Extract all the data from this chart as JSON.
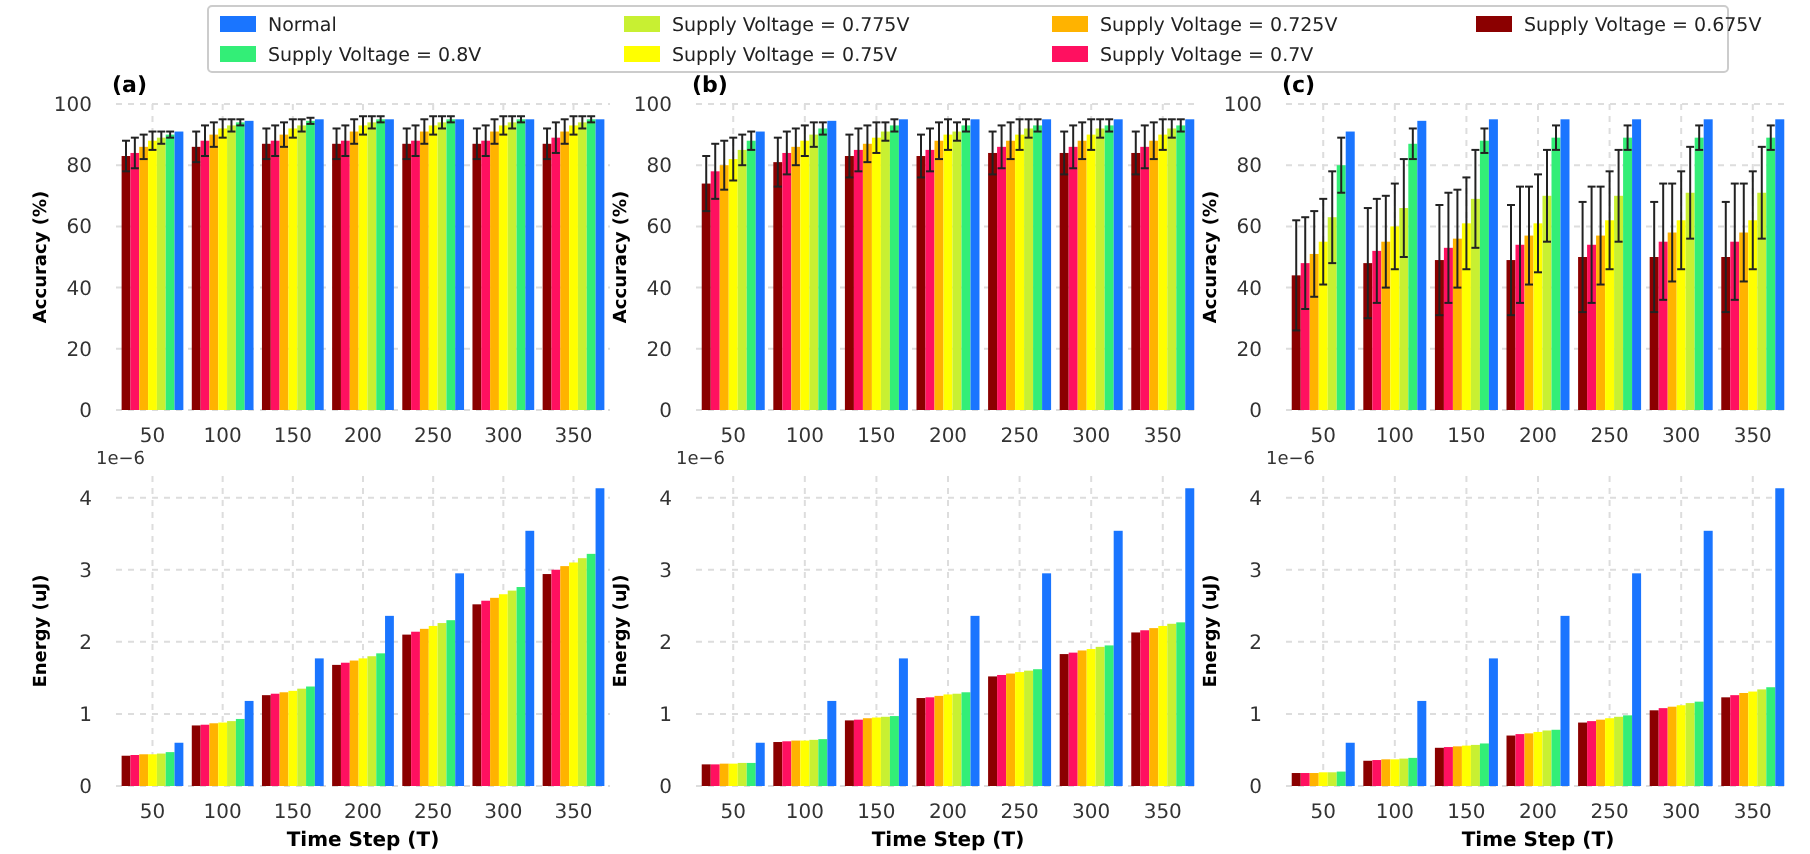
{
  "chart_data": [
    {
      "type": "bar",
      "title": "(a)",
      "ylabel": "Accuracy (%)",
      "categories": [
        "50",
        "100",
        "150",
        "200",
        "250",
        "300",
        "350"
      ],
      "ylim": [
        0,
        100
      ],
      "yticks": [
        0,
        20,
        40,
        60,
        80,
        100
      ],
      "grid": true,
      "legend": "top",
      "series": [
        {
          "name": "Supply Voltage = 0.675V",
          "color": "#8b0000",
          "values": [
            83,
            86,
            87,
            87,
            87,
            87,
            87
          ],
          "errors": [
            5,
            5,
            5,
            5,
            5,
            5,
            5
          ]
        },
        {
          "name": "Supply Voltage = 0.7V",
          "color": "#ff1060",
          "values": [
            84,
            88,
            88,
            88,
            88,
            88,
            89
          ],
          "errors": [
            5,
            5,
            5,
            5,
            5,
            5,
            5
          ]
        },
        {
          "name": "Supply Voltage = 0.725V",
          "color": "#ffb300",
          "values": [
            86,
            90,
            90,
            91,
            91,
            91,
            91
          ],
          "errors": [
            4,
            4,
            4,
            4,
            4,
            4,
            4
          ]
        },
        {
          "name": "Supply Voltage = 0.75V",
          "color": "#ffff00",
          "values": [
            88,
            92,
            92,
            93,
            93,
            93,
            93
          ],
          "errors": [
            3,
            3,
            3,
            3,
            3,
            3,
            3
          ]
        },
        {
          "name": "Supply Voltage = 0.775V",
          "color": "#c8f032",
          "values": [
            89,
            93,
            93,
            94,
            94,
            94,
            94
          ],
          "errors": [
            2,
            2,
            2,
            2,
            2,
            2,
            2
          ]
        },
        {
          "name": "Supply Voltage = 0.8V",
          "color": "#33ee77",
          "values": [
            90,
            94,
            94.5,
            95,
            95,
            95,
            95
          ],
          "errors": [
            1,
            1,
            1,
            1,
            1,
            1,
            1
          ]
        },
        {
          "name": "Normal",
          "color": "#1a75ff",
          "values": [
            91,
            94.5,
            95,
            95,
            95,
            95,
            95
          ]
        }
      ]
    },
    {
      "type": "bar",
      "title": "(b)",
      "ylabel": "Accuracy (%)",
      "categories": [
        "50",
        "100",
        "150",
        "200",
        "250",
        "300",
        "350"
      ],
      "ylim": [
        0,
        100
      ],
      "yticks": [
        0,
        20,
        40,
        60,
        80,
        100
      ],
      "grid": true,
      "series": [
        {
          "color": "#8b0000",
          "values": [
            74,
            81,
            83,
            83,
            84,
            84,
            84
          ],
          "errors": [
            9,
            8,
            7,
            7,
            7,
            7,
            7
          ]
        },
        {
          "color": "#ff1060",
          "values": [
            78,
            84,
            85,
            85,
            86,
            86,
            86
          ],
          "errors": [
            9,
            7,
            7,
            7,
            7,
            7,
            7
          ]
        },
        {
          "color": "#ffb300",
          "values": [
            80,
            86,
            87,
            88,
            88,
            88,
            88
          ],
          "errors": [
            8,
            6,
            6,
            6,
            6,
            6,
            6
          ]
        },
        {
          "color": "#ffff00",
          "values": [
            82,
            88,
            89,
            90,
            90,
            90,
            90
          ],
          "errors": [
            7,
            5,
            5,
            5,
            5,
            5,
            5
          ]
        },
        {
          "color": "#c8f032",
          "values": [
            85,
            90,
            91,
            91,
            92,
            92,
            92
          ],
          "errors": [
            5,
            4,
            3,
            3,
            3,
            3,
            3
          ]
        },
        {
          "color": "#33ee77",
          "values": [
            88,
            92,
            93,
            93,
            93,
            93,
            93
          ],
          "errors": [
            3,
            2,
            2,
            2,
            2,
            2,
            2
          ]
        },
        {
          "color": "#1a75ff",
          "values": [
            91,
            94.5,
            95,
            95,
            95,
            95,
            95
          ]
        }
      ]
    },
    {
      "type": "bar",
      "title": "(c)",
      "ylabel": "Accuracy (%)",
      "categories": [
        "50",
        "100",
        "150",
        "200",
        "250",
        "300",
        "350"
      ],
      "ylim": [
        0,
        100
      ],
      "yticks": [
        0,
        20,
        40,
        60,
        80,
        100
      ],
      "grid": true,
      "series": [
        {
          "color": "#8b0000",
          "values": [
            44,
            48,
            49,
            49,
            50,
            50,
            50
          ],
          "errors": [
            18,
            18,
            18,
            18,
            18,
            18,
            18
          ]
        },
        {
          "color": "#ff1060",
          "values": [
            48,
            52,
            53,
            54,
            54,
            55,
            55
          ],
          "errors": [
            15,
            17,
            18,
            19,
            19,
            19,
            19
          ]
        },
        {
          "color": "#ffb300",
          "values": [
            51,
            55,
            56,
            57,
            57,
            58,
            58
          ],
          "errors": [
            14,
            15,
            16,
            16,
            16,
            16,
            16
          ]
        },
        {
          "color": "#ffff00",
          "values": [
            55,
            60,
            61,
            61,
            62,
            62,
            62
          ],
          "errors": [
            14,
            14,
            15,
            16,
            16,
            16,
            16
          ]
        },
        {
          "color": "#c8f032",
          "values": [
            63,
            66,
            69,
            70,
            70,
            71,
            71
          ],
          "errors": [
            15,
            16,
            16,
            15,
            15,
            15,
            15
          ]
        },
        {
          "color": "#33ee77",
          "values": [
            80,
            87,
            88,
            89,
            89,
            89,
            89
          ],
          "errors": [
            9,
            5,
            4,
            4,
            4,
            4,
            4
          ]
        },
        {
          "color": "#1a75ff",
          "values": [
            91,
            94.5,
            95,
            95,
            95,
            95,
            95
          ]
        }
      ]
    },
    {
      "type": "bar",
      "xlabel": "Time Step (T)",
      "ylabel": "Energy (uJ)",
      "annotations": [
        "1e−6"
      ],
      "categories": [
        "50",
        "100",
        "150",
        "200",
        "250",
        "300",
        "350"
      ],
      "ylim": [
        0,
        4.3
      ],
      "yticks": [
        0,
        1,
        2,
        3,
        4
      ],
      "grid": true,
      "series": [
        {
          "color": "#8b0000",
          "values": [
            0.42,
            0.84,
            1.26,
            1.68,
            2.1,
            2.52,
            2.94
          ]
        },
        {
          "color": "#ff1060",
          "values": [
            0.43,
            0.85,
            1.28,
            1.71,
            2.14,
            2.57,
            3.0
          ]
        },
        {
          "color": "#ffb300",
          "values": [
            0.44,
            0.87,
            1.3,
            1.74,
            2.18,
            2.61,
            3.05
          ]
        },
        {
          "color": "#ffff00",
          "values": [
            0.44,
            0.88,
            1.32,
            1.77,
            2.22,
            2.66,
            3.1
          ]
        },
        {
          "color": "#c8f032",
          "values": [
            0.45,
            0.9,
            1.35,
            1.8,
            2.26,
            2.71,
            3.16
          ]
        },
        {
          "color": "#33ee77",
          "values": [
            0.47,
            0.93,
            1.38,
            1.84,
            2.3,
            2.76,
            3.22
          ]
        },
        {
          "color": "#1a75ff",
          "values": [
            0.6,
            1.18,
            1.77,
            2.36,
            2.95,
            3.54,
            4.13
          ]
        }
      ]
    },
    {
      "type": "bar",
      "xlabel": "Time Step (T)",
      "ylabel": "Energy (uJ)",
      "annotations": [
        "1e−6"
      ],
      "categories": [
        "50",
        "100",
        "150",
        "200",
        "250",
        "300",
        "350"
      ],
      "ylim": [
        0,
        4.3
      ],
      "yticks": [
        0,
        1,
        2,
        3,
        4
      ],
      "grid": true,
      "series": [
        {
          "color": "#8b0000",
          "values": [
            0.3,
            0.61,
            0.91,
            1.22,
            1.52,
            1.83,
            2.13
          ]
        },
        {
          "color": "#ff1060",
          "values": [
            0.3,
            0.62,
            0.92,
            1.23,
            1.54,
            1.85,
            2.16
          ]
        },
        {
          "color": "#ffb300",
          "values": [
            0.31,
            0.63,
            0.94,
            1.25,
            1.56,
            1.88,
            2.19
          ]
        },
        {
          "color": "#ffff00",
          "values": [
            0.31,
            0.63,
            0.95,
            1.27,
            1.58,
            1.9,
            2.22
          ]
        },
        {
          "color": "#c8f032",
          "values": [
            0.32,
            0.64,
            0.96,
            1.28,
            1.6,
            1.93,
            2.25
          ]
        },
        {
          "color": "#33ee77",
          "values": [
            0.32,
            0.65,
            0.97,
            1.3,
            1.62,
            1.95,
            2.27
          ]
        },
        {
          "color": "#1a75ff",
          "values": [
            0.6,
            1.18,
            1.77,
            2.36,
            2.95,
            3.54,
            4.13
          ]
        }
      ]
    },
    {
      "type": "bar",
      "xlabel": "Time Step (T)",
      "ylabel": "Energy (uJ)",
      "annotations": [
        "1e−6"
      ],
      "categories": [
        "50",
        "100",
        "150",
        "200",
        "250",
        "300",
        "350"
      ],
      "ylim": [
        0,
        4.3
      ],
      "yticks": [
        0,
        1,
        2,
        3,
        4
      ],
      "grid": true,
      "series": [
        {
          "color": "#8b0000",
          "values": [
            0.18,
            0.35,
            0.53,
            0.7,
            0.88,
            1.05,
            1.23
          ]
        },
        {
          "color": "#ff1060",
          "values": [
            0.18,
            0.36,
            0.54,
            0.72,
            0.9,
            1.08,
            1.26
          ]
        },
        {
          "color": "#ffb300",
          "values": [
            0.18,
            0.37,
            0.55,
            0.73,
            0.92,
            1.1,
            1.29
          ]
        },
        {
          "color": "#ffff00",
          "values": [
            0.19,
            0.37,
            0.56,
            0.75,
            0.94,
            1.12,
            1.31
          ]
        },
        {
          "color": "#c8f032",
          "values": [
            0.19,
            0.38,
            0.57,
            0.77,
            0.96,
            1.15,
            1.34
          ]
        },
        {
          "color": "#33ee77",
          "values": [
            0.2,
            0.39,
            0.59,
            0.78,
            0.98,
            1.17,
            1.37
          ]
        },
        {
          "color": "#1a75ff",
          "values": [
            0.6,
            1.18,
            1.77,
            2.36,
            2.95,
            3.54,
            4.13
          ]
        }
      ]
    }
  ]
}
